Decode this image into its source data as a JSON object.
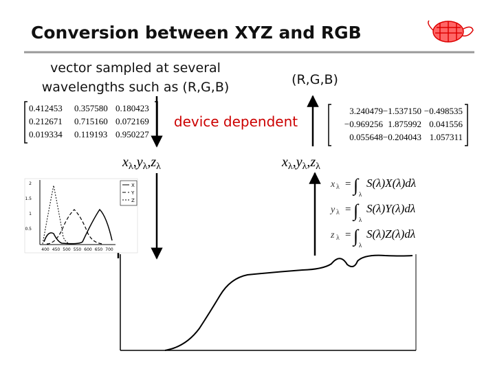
{
  "title": "Conversion between XYZ and RGB",
  "left_text": {
    "lines": [
      "vector sampled at several",
      "wavelengths such as (R,G,B)"
    ]
  },
  "right_label": "(R,G,B)",
  "middle_label": "device dependent",
  "left_matrix": {
    "rows": [
      [
        "0.412453",
        "0.357580",
        "0.180423"
      ],
      [
        "0.212671",
        "0.715160",
        "0.072169"
      ],
      [
        "0.019334",
        "0.119193",
        "0.950227"
      ]
    ]
  },
  "right_matrix": {
    "rows": [
      [
        "3.240479",
        "−1.537150",
        "−0.498535"
      ],
      [
        "−0.969256",
        "1.875992",
        "0.041556"
      ],
      [
        "0.055648",
        "−0.204043",
        "1.057311"
      ]
    ]
  },
  "left_coords": {
    "x": "x",
    "y": "y",
    "z": "z",
    "sub": "λ",
    "sep": ","
  },
  "right_coords": {
    "x": "x",
    "y": "y",
    "z": "z",
    "sub": "λ",
    "sep": ","
  },
  "equations": [
    {
      "lhs": "x",
      "lhs_sub": "λ",
      "eq": "=",
      "integral": "∫",
      "integral_sub": "λ",
      "rhs": "S(λ)X(λ)dλ"
    },
    {
      "lhs": "y",
      "lhs_sub": "λ",
      "eq": "=",
      "integral": "∫",
      "integral_sub": "λ",
      "rhs": "S(λ)Y(λ)dλ"
    },
    {
      "lhs": "z",
      "lhs_sub": "λ",
      "eq": "=",
      "integral": "∫",
      "integral_sub": "λ",
      "rhs": "S(λ)Z(λ)dλ"
    }
  ],
  "cmf_plot": {
    "yticks": [
      "2",
      "1.5",
      "1",
      "0.5"
    ],
    "xticks": [
      "400",
      "450",
      "500",
      "550",
      "600",
      "650",
      "700"
    ],
    "legend": [
      "X",
      "Y",
      "Z"
    ]
  }
}
